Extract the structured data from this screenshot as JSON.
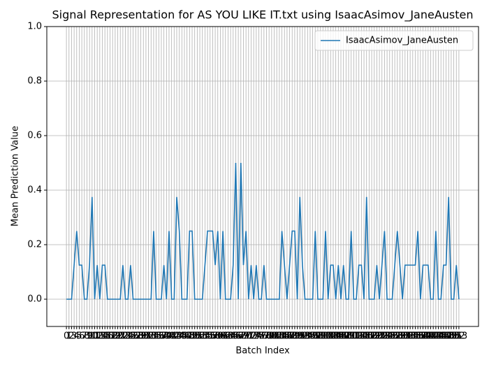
{
  "chart_data": {
    "type": "line",
    "title": "Signal Representation for AS YOU LIKE IT.txt using IsaacAsimov_JaneAusten",
    "x_label": "Batch Index",
    "y_label": "Mean Prediction Value",
    "x": [
      0,
      1,
      2,
      3,
      4,
      5,
      6,
      7,
      8,
      9,
      10,
      11,
      12,
      13,
      14,
      15,
      16,
      17,
      18,
      19,
      20,
      21,
      22,
      23,
      24,
      25,
      26,
      27,
      28,
      29,
      30,
      31,
      32,
      33,
      34,
      35,
      36,
      37,
      38,
      39,
      40,
      41,
      42,
      43,
      44,
      45,
      46,
      47,
      48,
      49,
      50,
      51,
      52,
      53,
      54,
      55,
      56,
      57,
      58,
      59,
      60,
      61,
      62,
      63,
      64,
      65,
      66,
      67,
      68,
      69,
      70,
      71,
      72,
      73,
      74,
      75,
      76,
      77,
      78,
      79,
      80,
      81,
      82,
      83,
      84,
      85,
      86,
      87,
      88,
      89,
      90,
      91,
      92,
      93,
      94,
      95,
      96,
      97,
      98,
      99,
      100,
      101,
      102,
      103,
      104,
      105,
      106,
      107,
      108,
      109,
      110,
      111,
      112,
      113,
      114,
      115,
      116,
      117,
      118,
      119,
      120,
      121,
      122,
      123,
      124,
      125,
      126,
      127,
      128,
      129,
      130,
      131,
      132,
      133,
      134,
      135,
      136,
      137,
      138,
      139,
      140,
      141,
      142,
      143,
      144,
      145,
      146,
      147,
      148,
      149,
      150,
      151,
      152,
      153
    ],
    "series": [
      {
        "name": "IsaacAsimov_JaneAusten",
        "color": "#1f77b4",
        "values": [
          0,
          0,
          0,
          0.125,
          0.25,
          0.125,
          0.125,
          0,
          0,
          0.125,
          0.375,
          0,
          0.125,
          0,
          0.125,
          0.125,
          0,
          0,
          0,
          0,
          0,
          0,
          0.125,
          0,
          0,
          0.125,
          0,
          0,
          0,
          0,
          0,
          0,
          0,
          0,
          0.25,
          0,
          0,
          0,
          0.125,
          0,
          0.25,
          0,
          0,
          0.375,
          0.25,
          0,
          0,
          0,
          0.25,
          0.25,
          0,
          0,
          0,
          0,
          0.125,
          0.25,
          0.25,
          0.25,
          0.125,
          0.25,
          0,
          0.25,
          0,
          0,
          0,
          0.125,
          0.5,
          0,
          0.5,
          0.125,
          0.25,
          0,
          0.125,
          0,
          0.125,
          0,
          0,
          0.125,
          0,
          0,
          0,
          0,
          0,
          0,
          0.25,
          0.125,
          0,
          0.125,
          0.25,
          0.25,
          0,
          0.375,
          0.125,
          0,
          0,
          0,
          0,
          0.25,
          0,
          0,
          0,
          0.25,
          0,
          0.125,
          0.125,
          0,
          0.125,
          0,
          0.125,
          0,
          0,
          0.25,
          0,
          0,
          0.125,
          0.125,
          0,
          0.375,
          0,
          0,
          0,
          0.125,
          0,
          0.125,
          0.25,
          0,
          0,
          0,
          0.125,
          0.25,
          0.125,
          0,
          0.125,
          0.125,
          0.125,
          0.125,
          0.125,
          0.25,
          0,
          0.125,
          0.125,
          0.125,
          0,
          0,
          0.25,
          0,
          0,
          0.125,
          0.125,
          0.375,
          0,
          0,
          0.125,
          0
        ]
      }
    ],
    "xlim": [
      -7.65,
      160.65
    ],
    "xticks": [
      0,
      1,
      2,
      3,
      4,
      5,
      6,
      7,
      8,
      9,
      10,
      11,
      12,
      13,
      14,
      15,
      16,
      17,
      18,
      19,
      20,
      21,
      22,
      23,
      24,
      25,
      26,
      27,
      28,
      29,
      30,
      31,
      32,
      33,
      34,
      35,
      36,
      37,
      38,
      39,
      40,
      41,
      42,
      43,
      44,
      45,
      46,
      47,
      48,
      49,
      50,
      51,
      52,
      53,
      54,
      55,
      56,
      57,
      58,
      59,
      60,
      61,
      62,
      63,
      64,
      65,
      66,
      67,
      68,
      69,
      70,
      71,
      72,
      73,
      74,
      75,
      76,
      77,
      78,
      79,
      80,
      81,
      82,
      83,
      84,
      85,
      86,
      87,
      88,
      89,
      90,
      91,
      92,
      93,
      94,
      95,
      96,
      97,
      98,
      99,
      100,
      101,
      102,
      103,
      104,
      105,
      106,
      107,
      108,
      109,
      110,
      111,
      112,
      113,
      114,
      115,
      116,
      117,
      118,
      119,
      120,
      121,
      122,
      123,
      124,
      125,
      126,
      127,
      128,
      129,
      130,
      131,
      132,
      133,
      134,
      135,
      136,
      137,
      138,
      139,
      140,
      141,
      142,
      143,
      144,
      145,
      146,
      147,
      148,
      149,
      150,
      151,
      152,
      153
    ],
    "ylim": [
      -0.1,
      1.0
    ],
    "yticks": [
      {
        "value": 0,
        "label": "0.0"
      },
      {
        "value": 0.2,
        "label": "0.2"
      },
      {
        "value": 0.4,
        "label": "0.4"
      },
      {
        "value": 0.6,
        "label": "0.6"
      },
      {
        "value": 0.8,
        "label": "0.8"
      },
      {
        "value": 1,
        "label": "1.0"
      }
    ],
    "grid": true,
    "legend": "upper right"
  }
}
